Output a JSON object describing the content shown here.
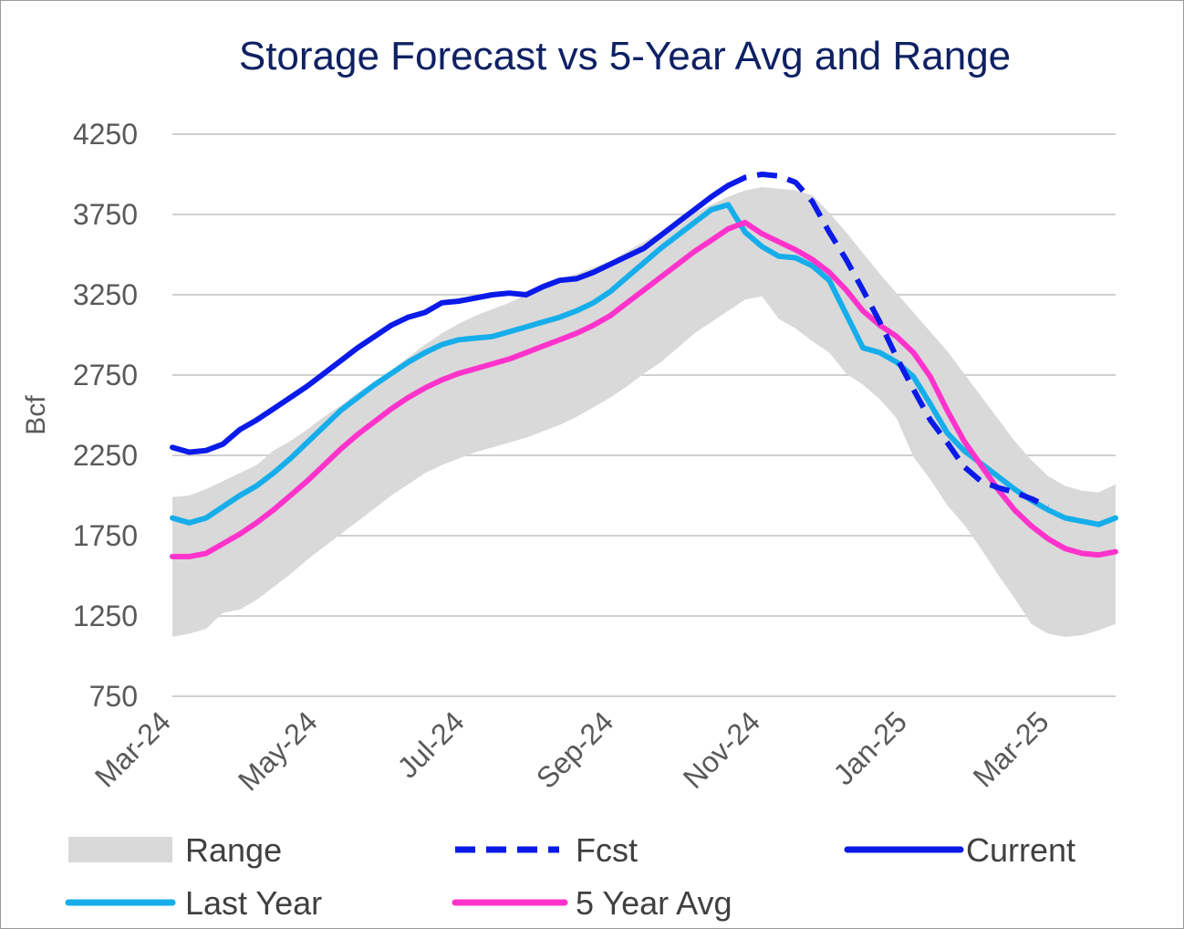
{
  "chart_data": {
    "type": "line",
    "title": "Storage Forecast vs 5-Year Avg and Range",
    "ylabel": "Bcf",
    "xlabel": "",
    "ylim": [
      750,
      4250
    ],
    "yticks": [
      "4250",
      "3750",
      "3250",
      "2750",
      "2250",
      "1750",
      "1250",
      "750"
    ],
    "xticks": [
      "Mar-24",
      "May-24",
      "Jul-24",
      "Sep-24",
      "Nov-24",
      "Jan-25",
      "Mar-25"
    ],
    "grid": true,
    "legend_position": "bottom",
    "x_dates": [
      "2024-03-01",
      "2024-03-08",
      "2024-03-15",
      "2024-03-22",
      "2024-03-29",
      "2024-04-05",
      "2024-04-12",
      "2024-04-19",
      "2024-04-26",
      "2024-05-03",
      "2024-05-10",
      "2024-05-17",
      "2024-05-24",
      "2024-05-31",
      "2024-06-07",
      "2024-06-14",
      "2024-06-21",
      "2024-06-28",
      "2024-07-05",
      "2024-07-12",
      "2024-07-19",
      "2024-07-26",
      "2024-08-02",
      "2024-08-09",
      "2024-08-16",
      "2024-08-23",
      "2024-08-30",
      "2024-09-06",
      "2024-09-13",
      "2024-09-20",
      "2024-09-27",
      "2024-10-04",
      "2024-10-11",
      "2024-10-18",
      "2024-10-25",
      "2024-11-01",
      "2024-11-08",
      "2024-11-15",
      "2024-11-22",
      "2024-11-29",
      "2024-12-06",
      "2024-12-13",
      "2024-12-20",
      "2024-12-27",
      "2025-01-03",
      "2025-01-10",
      "2025-01-17",
      "2025-01-24",
      "2025-01-31",
      "2025-02-07",
      "2025-02-14",
      "2025-02-21",
      "2025-02-28",
      "2025-03-07",
      "2025-03-14",
      "2025-03-21",
      "2025-03-28"
    ],
    "range_upper": [
      1990,
      2000,
      2040,
      2090,
      2140,
      2190,
      2280,
      2340,
      2410,
      2490,
      2560,
      2640,
      2710,
      2780,
      2860,
      2940,
      3010,
      3070,
      3120,
      3160,
      3200,
      3250,
      3300,
      3350,
      3380,
      3420,
      3460,
      3520,
      3580,
      3640,
      3700,
      3760,
      3810,
      3860,
      3900,
      3920,
      3910,
      3900,
      3870,
      3760,
      3640,
      3510,
      3380,
      3260,
      3140,
      3020,
      2900,
      2760,
      2620,
      2480,
      2340,
      2220,
      2120,
      2060,
      2030,
      2020,
      2070
    ],
    "range_lower": [
      1120,
      1140,
      1170,
      1270,
      1290,
      1350,
      1430,
      1510,
      1600,
      1680,
      1760,
      1840,
      1920,
      2000,
      2070,
      2140,
      2190,
      2230,
      2270,
      2300,
      2330,
      2360,
      2400,
      2440,
      2490,
      2550,
      2610,
      2680,
      2760,
      2830,
      2920,
      3010,
      3080,
      3150,
      3220,
      3240,
      3100,
      3040,
      2960,
      2890,
      2760,
      2690,
      2600,
      2480,
      2240,
      2100,
      1940,
      1820,
      1670,
      1510,
      1360,
      1200,
      1140,
      1120,
      1130,
      1160,
      1200
    ],
    "series": [
      {
        "name": "Current",
        "color": "#0a1ae8",
        "style": "solid",
        "values": [
          2300,
          2270,
          2280,
          2320,
          2410,
          2470,
          2540,
          2610,
          2680,
          2760,
          2840,
          2920,
          2990,
          3060,
          3110,
          3140,
          3200,
          3210,
          3230,
          3250,
          3260,
          3250,
          3300,
          3340,
          3350,
          3390,
          3440,
          3490,
          3540,
          3620,
          3700,
          3780,
          3860,
          3930
        ]
      },
      {
        "name": "Fcst",
        "color": "#0a1ae8",
        "style": "dashed",
        "start_index": 33,
        "values": [
          3930,
          3980,
          4000,
          3990,
          3950,
          3830,
          3640,
          3470,
          3280,
          3080,
          2860,
          2660,
          2470,
          2330,
          2180,
          2090,
          2050,
          2020,
          1980,
          1930
        ]
      },
      {
        "name": "Last Year",
        "color": "#16aeea",
        "style": "solid",
        "values": [
          1860,
          1830,
          1860,
          1930,
          2000,
          2060,
          2140,
          2230,
          2330,
          2430,
          2530,
          2610,
          2690,
          2760,
          2830,
          2890,
          2940,
          2970,
          2980,
          2990,
          3020,
          3050,
          3080,
          3110,
          3150,
          3200,
          3270,
          3360,
          3450,
          3540,
          3620,
          3700,
          3780,
          3810,
          3640,
          3550,
          3490,
          3480,
          3430,
          3340,
          3130,
          2920,
          2890,
          2830,
          2740,
          2570,
          2390,
          2280,
          2200,
          2120,
          2040,
          1970,
          1910,
          1860,
          1840,
          1820,
          1860
        ]
      },
      {
        "name": "5 Year Avg",
        "color": "#ff33cc",
        "style": "solid",
        "values": [
          1620,
          1620,
          1640,
          1700,
          1760,
          1830,
          1910,
          2000,
          2090,
          2190,
          2290,
          2380,
          2460,
          2540,
          2610,
          2670,
          2720,
          2760,
          2790,
          2820,
          2850,
          2890,
          2930,
          2970,
          3010,
          3060,
          3120,
          3200,
          3280,
          3360,
          3440,
          3520,
          3590,
          3660,
          3700,
          3630,
          3580,
          3530,
          3470,
          3390,
          3280,
          3150,
          3060,
          2990,
          2890,
          2740,
          2530,
          2340,
          2190,
          2040,
          1910,
          1810,
          1730,
          1670,
          1640,
          1630,
          1650
        ]
      }
    ],
    "legend": [
      {
        "label": "Range",
        "kind": "area",
        "color": "#d9d9d9"
      },
      {
        "label": "Fcst",
        "kind": "dashed",
        "color": "#0a1ae8"
      },
      {
        "label": "Current",
        "kind": "line",
        "color": "#0a1ae8"
      },
      {
        "label": "Last Year",
        "kind": "line",
        "color": "#16aeea"
      },
      {
        "label": "5 Year Avg",
        "kind": "line",
        "color": "#ff33cc"
      }
    ]
  }
}
